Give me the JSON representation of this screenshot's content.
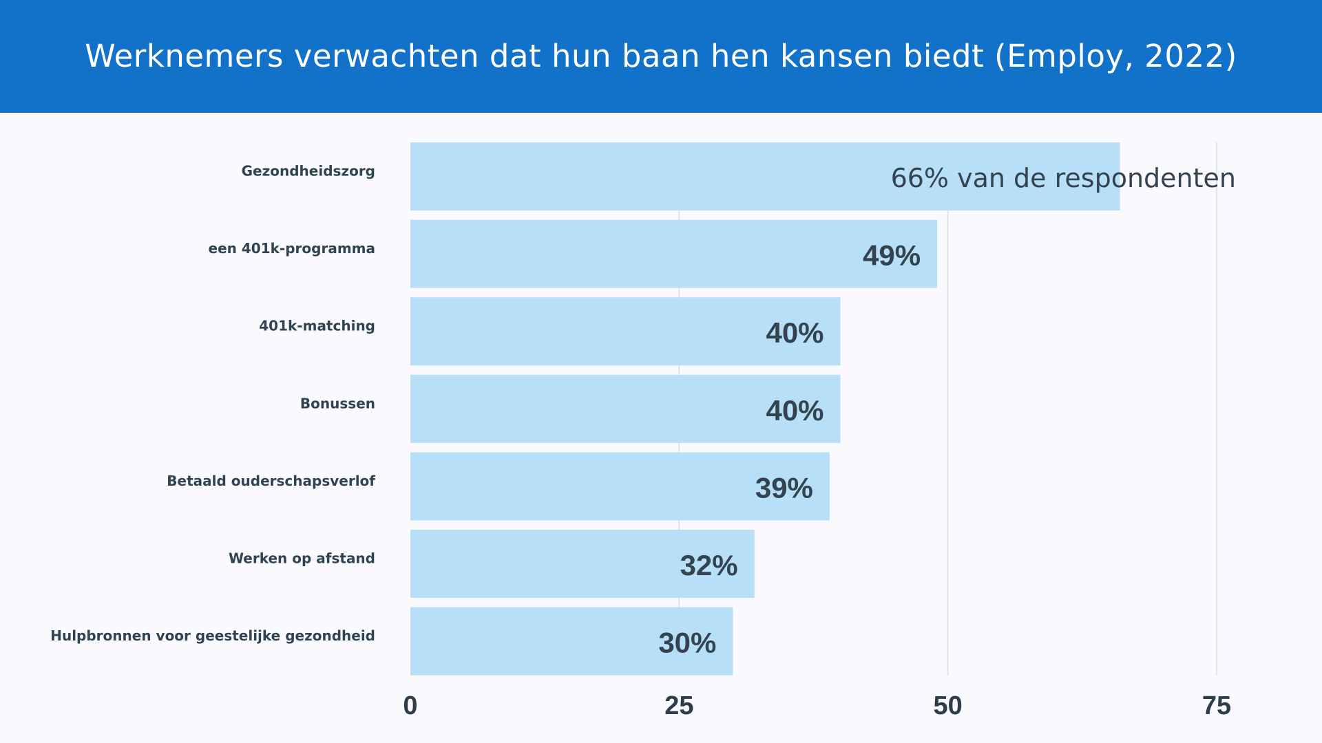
{
  "chart_data": {
    "type": "bar",
    "orientation": "horizontal",
    "title": "Werknemers verwachten dat hun baan hen kansen biedt (Employ, 2022)",
    "categories": [
      "Gezondheidszorg",
      "een 401k-programma",
      "401k-matching",
      "Bonussen",
      "Betaald ouderschapsverlof",
      "Werken op afstand",
      "Hulpbronnen voor geestelijke gezondheid"
    ],
    "values": [
      66,
      49,
      40,
      40,
      39,
      32,
      30
    ],
    "data_labels": [
      "66% van de respondenten",
      "49%",
      "40%",
      "40%",
      "39%",
      "32%",
      "30%"
    ],
    "xlim": [
      0,
      75
    ],
    "xticks": [
      "0",
      "25",
      "50",
      "75"
    ],
    "grid": true,
    "colors": {
      "header": "#1271c9",
      "bar": "#b8dff8",
      "text": "#33434f"
    }
  }
}
